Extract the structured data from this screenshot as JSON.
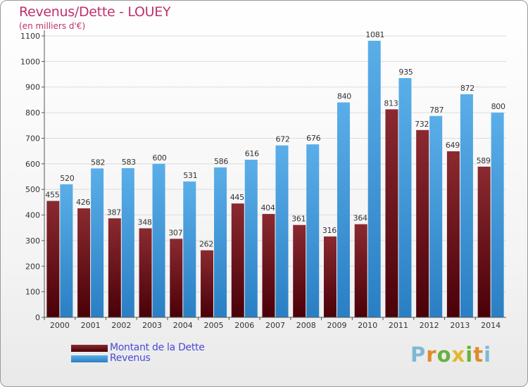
{
  "header": {
    "title": "Revenus/Dette - LOUEY",
    "subtitle": "(en milliers d'€)"
  },
  "legend": {
    "items": [
      {
        "label": "Montant de la Dette",
        "color": "#6b1218"
      },
      {
        "label": "Revenus",
        "color": "#3f98dc"
      }
    ]
  },
  "brand": {
    "text": "Proxiti",
    "letters": [
      {
        "ch": "P",
        "color": "#7fb8d6"
      },
      {
        "ch": "r",
        "color": "#e08a2c"
      },
      {
        "ch": "o",
        "color": "#6ab03c"
      },
      {
        "ch": "x",
        "color": "#e0b82c"
      },
      {
        "ch": "i",
        "color": "#6ab03c"
      },
      {
        "ch": "t",
        "color": "#e08a2c"
      },
      {
        "ch": "i",
        "color": "#7fb8d6"
      }
    ]
  },
  "chart_data": {
    "type": "bar",
    "title": "Revenus/Dette - LOUEY",
    "subtitle": "(en milliers d'€)",
    "xlabel": "",
    "ylabel": "",
    "ylim": [
      0,
      1100
    ],
    "yticks": [
      0,
      100,
      200,
      300,
      400,
      500,
      600,
      700,
      800,
      900,
      1000,
      1100
    ],
    "grid": true,
    "legend_position": "bottom-left",
    "categories": [
      "2000",
      "2001",
      "2002",
      "2003",
      "2004",
      "2005",
      "2006",
      "2007",
      "2008",
      "2009",
      "2010",
      "2011",
      "2012",
      "2013",
      "2014"
    ],
    "series": [
      {
        "name": "Montant de la Dette",
        "color": "#6b1218",
        "values": [
          455,
          426,
          387,
          348,
          307,
          262,
          445,
          404,
          361,
          316,
          364,
          813,
          732,
          649,
          589
        ]
      },
      {
        "name": "Revenus",
        "color": "#3f98dc",
        "values": [
          520,
          582,
          583,
          600,
          531,
          586,
          616,
          672,
          676,
          840,
          1081,
          935,
          787,
          872,
          800
        ]
      }
    ]
  }
}
